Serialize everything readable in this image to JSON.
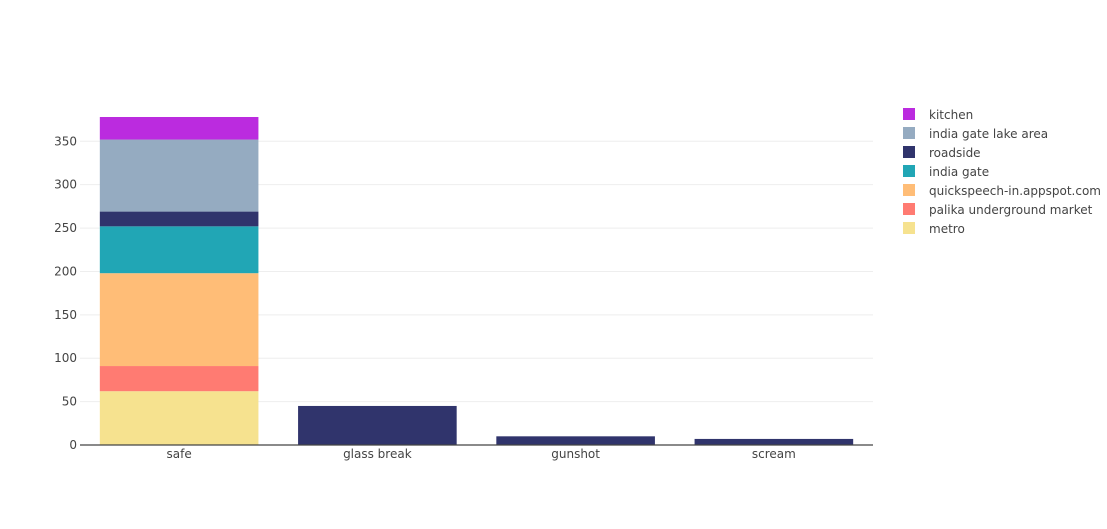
{
  "chart_data": {
    "type": "bar",
    "stacked": true,
    "categories": [
      "safe",
      "glass break",
      "gunshot",
      "scream"
    ],
    "yticks": [
      0,
      50,
      100,
      150,
      200,
      250,
      300,
      350
    ],
    "ylim": [
      0,
      378
    ],
    "grid": true,
    "legend_position": "top-right",
    "series": [
      {
        "name": "metro",
        "color": "#F6E28F",
        "values": [
          62,
          0,
          0,
          0
        ]
      },
      {
        "name": "palika underground market",
        "color": "#FF7B72",
        "values": [
          29,
          0,
          0,
          0
        ]
      },
      {
        "name": "quickspeech-in.appspot.com",
        "color": "#FFBD77",
        "values": [
          107,
          0,
          0,
          0
        ]
      },
      {
        "name": "india gate",
        "color": "#21A6B5",
        "values": [
          54,
          0,
          0,
          0
        ]
      },
      {
        "name": "roadside",
        "color": "#30346C",
        "values": [
          17,
          45,
          10,
          7
        ]
      },
      {
        "name": "india gate lake area",
        "color": "#95ABC1",
        "values": [
          83,
          0,
          0,
          0
        ]
      },
      {
        "name": "kitchen",
        "color": "#BB2BDF",
        "values": [
          26,
          0,
          0,
          0
        ]
      }
    ]
  }
}
